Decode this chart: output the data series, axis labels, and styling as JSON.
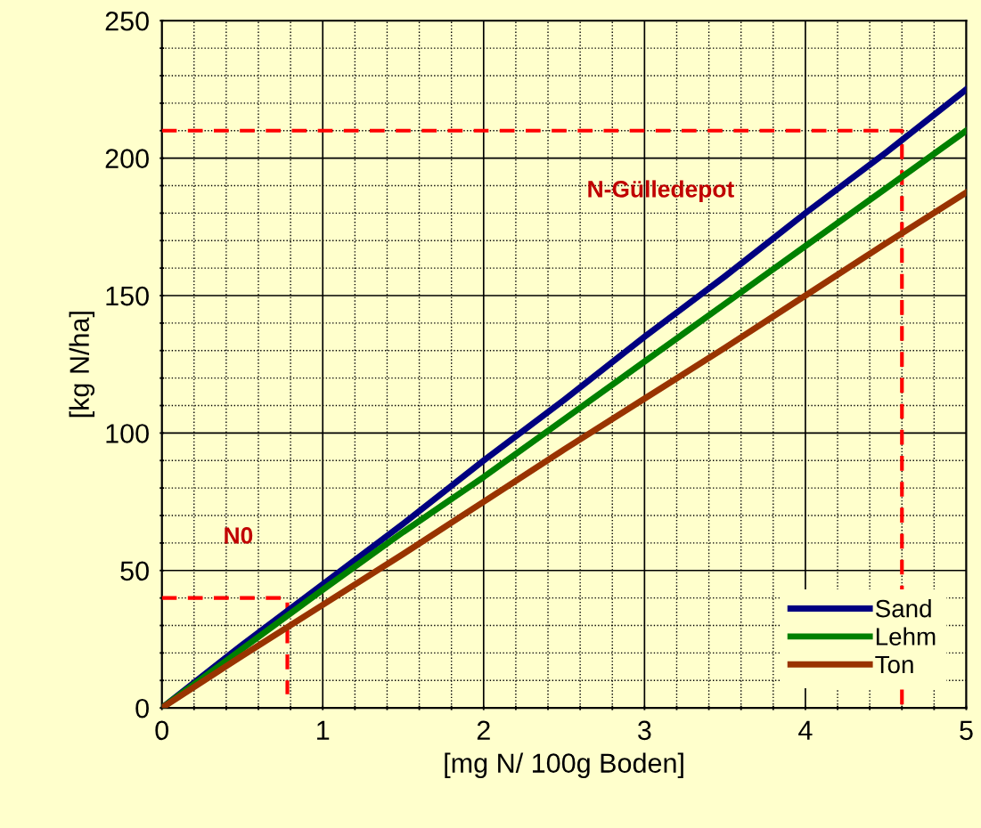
{
  "chart_data": {
    "type": "line",
    "xlabel": "[mg N/ 100g Boden]",
    "ylabel": "[kg N/ha]",
    "x": [
      0,
      0.5,
      1,
      1.5,
      2,
      2.5,
      3,
      3.5,
      4,
      4.5,
      5
    ],
    "xlim": [
      0,
      5
    ],
    "ylim": [
      0,
      250
    ],
    "xticks": [
      0,
      {
        "value": 0.2,
        "label": null
      },
      {
        "value": 0.4,
        "label": null
      },
      {
        "value": 0.6,
        "label": null
      },
      {
        "value": 0.8,
        "label": null
      },
      1,
      {
        "value": 1.2,
        "label": null
      },
      {
        "value": 1.4,
        "label": null
      },
      {
        "value": 1.6,
        "label": null
      },
      {
        "value": 1.8,
        "label": null
      },
      2,
      {
        "value": 2.2,
        "label": null
      },
      {
        "value": 2.4,
        "label": null
      },
      {
        "value": 2.6,
        "label": null
      },
      {
        "value": 2.8,
        "label": null
      },
      3,
      {
        "value": 3.2,
        "label": null
      },
      {
        "value": 3.4,
        "label": null
      },
      {
        "value": 3.6,
        "label": null
      },
      {
        "value": 3.8,
        "label": null
      },
      4,
      {
        "value": 4.2,
        "label": null
      },
      {
        "value": 4.4,
        "label": null
      },
      {
        "value": 4.6,
        "label": null
      },
      {
        "value": 4.8,
        "label": null
      },
      5
    ],
    "yticks": [
      0,
      {
        "value": 10,
        "label": null
      },
      {
        "value": 20,
        "label": null
      },
      {
        "value": 30,
        "label": null
      },
      {
        "value": 40,
        "label": null
      },
      50,
      {
        "value": 60,
        "label": null
      },
      {
        "value": 70,
        "label": null
      },
      {
        "value": 80,
        "label": null
      },
      {
        "value": 90,
        "label": null
      },
      100,
      {
        "value": 110,
        "label": null
      },
      {
        "value": 120,
        "label": null
      },
      {
        "value": 130,
        "label": null
      },
      {
        "value": 140,
        "label": null
      },
      150,
      {
        "value": 160,
        "label": null
      },
      {
        "value": 170,
        "label": null
      },
      {
        "value": 180,
        "label": null
      },
      {
        "value": 190,
        "label": null
      },
      200,
      {
        "value": 210,
        "label": null
      },
      {
        "value": 220,
        "label": null
      },
      {
        "value": 230,
        "label": null
      },
      {
        "value": 240,
        "label": null
      },
      250
    ],
    "grid": true,
    "legend": "bottom right",
    "marker": "none",
    "line_style": "solid",
    "series": [
      {
        "name": "Sand",
        "color": "#000080",
        "values": [
          0,
          23,
          45,
          67,
          90,
          112,
          135,
          157,
          180,
          202,
          225
        ]
      },
      {
        "name": "Lehm",
        "color": "#008000",
        "values": [
          0,
          21.5,
          43,
          64,
          84,
          105,
          126,
          147,
          168,
          189,
          210
        ]
      },
      {
        "name": "Ton",
        "color": "#993300",
        "values": [
          0,
          19,
          37.5,
          56,
          75,
          94,
          112.5,
          131,
          150,
          169,
          187.5
        ]
      },
      {
        "color": "#ff0000",
        "line_style": "dashed",
        "x": [
          0,
          4.6,
          4.6
        ],
        "values": [
          210,
          210,
          0
        ]
      },
      {
        "color": "#ff0000",
        "line_style": "dashed",
        "x": [
          0,
          0.78,
          0.78
        ],
        "values": [
          40,
          40,
          5
        ]
      }
    ],
    "annotations": [
      "N-Gülledepot",
      "N0"
    ]
  }
}
